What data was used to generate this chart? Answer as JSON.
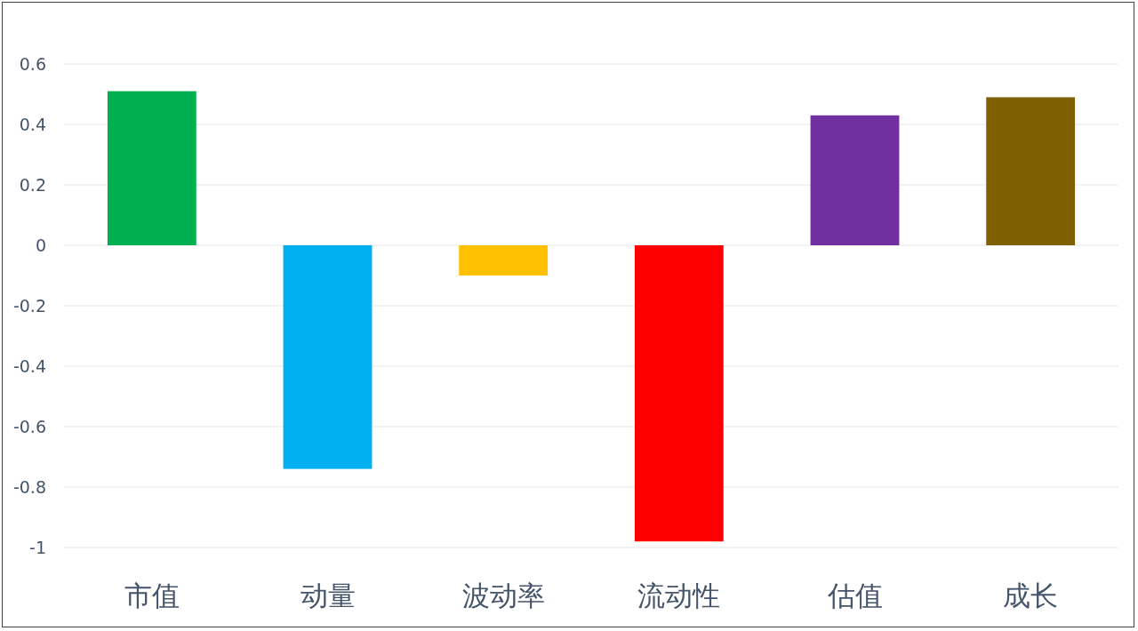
{
  "chart_data": {
    "type": "bar",
    "categories": [
      "市值",
      "动量",
      "波动率",
      "流动性",
      "估值",
      "成长"
    ],
    "values": [
      0.51,
      -0.74,
      -0.1,
      -0.98,
      0.43,
      0.49
    ],
    "colors": [
      "#00b050",
      "#00b0f0",
      "#ffc000",
      "#ff0000",
      "#7030a0",
      "#7f6000"
    ],
    "ylim": [
      -1,
      0.6
    ],
    "yticks": [
      -1,
      -0.8,
      -0.6,
      -0.4,
      -0.2,
      0,
      0.2,
      0.4,
      0.6
    ],
    "grid": "y"
  }
}
